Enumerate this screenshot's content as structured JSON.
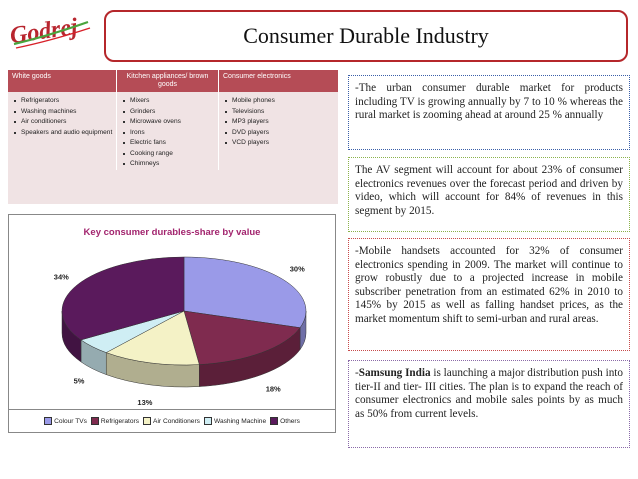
{
  "logo": {
    "text": "Godrej"
  },
  "slide_title": "Consumer Durable Industry",
  "table": {
    "headers": [
      "White goods",
      "Kitchen appliances/ brown goods",
      "Consumer electronics"
    ],
    "columns": [
      [
        "Refrigerators",
        "Washing machines",
        "Air conditioners",
        "Speakers and audio equipment"
      ],
      [
        "Mixers",
        "Grinders",
        "Microwave ovens",
        "Irons",
        "Electric fans",
        "Cooking range",
        "Chimneys"
      ],
      [
        "Mobile phones",
        "Televisions",
        "MP3 players",
        "DVD players",
        "VCD players"
      ]
    ]
  },
  "chart_data": {
    "type": "pie",
    "title": "Key consumer durables-share by value",
    "categories": [
      "Colour TVs",
      "Refrigerators",
      "Air Conditioners",
      "Washing Machine",
      "Others"
    ],
    "values": [
      30,
      18,
      13,
      5,
      34
    ],
    "value_labels": [
      "30%",
      "18%",
      "13%",
      "5%",
      "34%"
    ],
    "colors": [
      "#9a9ae8",
      "#7f2b4f",
      "#f4f2c6",
      "#cfeef4",
      "#5a1a5c"
    ],
    "legend_position": "bottom"
  },
  "text_boxes": [
    {
      "text": "-The urban consumer durable market for products including TV is growing annually by 7 to 10 % whereas the rural market is zooming ahead at around 25 % annually"
    },
    {
      "text": "The AV segment will account for about 23% of consumer electronics revenues over the forecast period and driven by video, which will account for 84% of revenues in this segment by 2015."
    },
    {
      "text": "-Mobile handsets accounted for 32% of consumer electronics spending in 2009. The market will continue to grow robustly due to a projected increase in mobile subscriber penetration from an estimated 62% in 2010 to 145% by 2015 as well as falling handset prices, as the market momentum shift to semi-urban and rural areas."
    },
    {
      "prefix": "-",
      "bold": "Samsung India",
      "text": " is launching a major distribution push into tier-II and tier- III cities. The plan is to expand the reach of consumer electronics and mobile sales points by as much as 50% from current levels."
    }
  ]
}
